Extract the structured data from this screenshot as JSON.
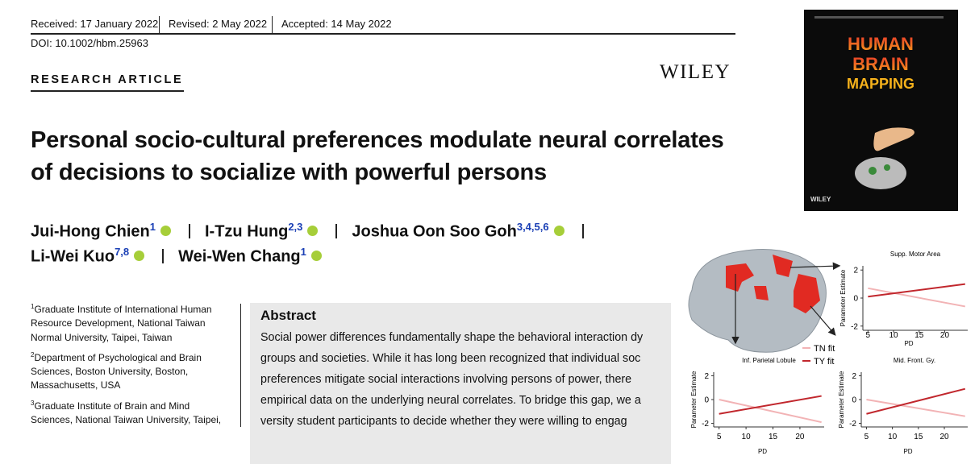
{
  "header": {
    "received": "Received: 17 January 2022",
    "revised": "Revised: 2 May 2022",
    "accepted": "Accepted: 14 May 2022",
    "doi": "DOI: 10.1002/hbm.25963",
    "article_type": "RESEARCH ARTICLE",
    "publisher": "WILEY"
  },
  "title_lines": [
    "Personal socio-cultural preferences modulate neural correlates",
    "of decisions to socialize with powerful persons"
  ],
  "authors": [
    {
      "name": "Jui-Hong Chien",
      "affiliations": "1"
    },
    {
      "name": "I-Tzu Hung",
      "affiliations": "2,3"
    },
    {
      "name": "Joshua Oon Soo Goh",
      "affiliations": "3,4,5,6"
    },
    {
      "name": "Li-Wei Kuo",
      "affiliations": "7,8"
    },
    {
      "name": "Wei-Wen Chang",
      "affiliations": "1"
    }
  ],
  "affiliations": [
    {
      "number": "1",
      "text": "Graduate Institute of International Human Resource Development, National Taiwan Normal University, Taipei, Taiwan"
    },
    {
      "number": "2",
      "text": "Department of Psychological and Brain Sciences, Boston University, Boston, Massachusetts, USA"
    },
    {
      "number": "3",
      "text": "Graduate Institute of Brain and Mind Sciences, National Taiwan University, Taipei,"
    }
  ],
  "abstract": {
    "heading": "Abstract",
    "lines": [
      "Social power differences fundamentally shape the behavioral interaction dy",
      "groups and societies. While it has long been recognized that individual soc",
      "preferences mitigate social interactions involving persons of power, there",
      "empirical data on the underlying neural correlates. To bridge this gap, we a",
      "versity student participants to decide whether they were willing to engag"
    ]
  },
  "cover": {
    "lines": [
      "HUMAN",
      "BRAIN",
      "MAPPING"
    ],
    "publisher": "WILEY"
  },
  "chart_data": [
    {
      "type": "line",
      "title": "Supp. Motor Area",
      "xlabel": "PD",
      "ylabel": "Parameter Estimate",
      "x": [
        5,
        24
      ],
      "series": [
        {
          "name": "TN fit",
          "color": "#f2b3b5",
          "values": [
            0.7,
            -0.6
          ]
        },
        {
          "name": "TY fit",
          "color": "#c1272d",
          "values": [
            0.1,
            1.0
          ]
        }
      ],
      "xlim": [
        4,
        24.5
      ],
      "ylim": [
        -2.3,
        2.3
      ],
      "xticks": [
        5,
        10,
        15,
        20
      ],
      "yticks": [
        -2,
        0,
        2
      ]
    },
    {
      "type": "line",
      "title": "Inf. Parietal Lobule",
      "xlabel": "PD",
      "ylabel": "Parameter Estimate",
      "x": [
        5,
        24
      ],
      "series": [
        {
          "color": "#f2b3b5",
          "values": [
            0.0,
            -1.9
          ]
        },
        {
          "color": "#c1272d",
          "values": [
            -1.2,
            0.3
          ]
        }
      ],
      "xlim": [
        4,
        24.5
      ],
      "ylim": [
        -2.3,
        2.3
      ],
      "xticks": [
        5,
        10,
        15,
        20
      ],
      "yticks": [
        -2,
        0,
        2
      ]
    },
    {
      "type": "line",
      "title": "Mid. Front. Gy.",
      "xlabel": "PD",
      "ylabel": "Parameter Estimate",
      "x": [
        5,
        24
      ],
      "series": [
        {
          "color": "#f2b3b5",
          "values": [
            0.0,
            -1.4
          ]
        },
        {
          "color": "#c1272d",
          "values": [
            -1.2,
            0.9
          ]
        }
      ],
      "xlim": [
        4,
        24.5
      ],
      "ylim": [
        -2.3,
        2.3
      ],
      "xticks": [
        5,
        10,
        15,
        20
      ],
      "yticks": [
        -2,
        0,
        2
      ]
    }
  ]
}
